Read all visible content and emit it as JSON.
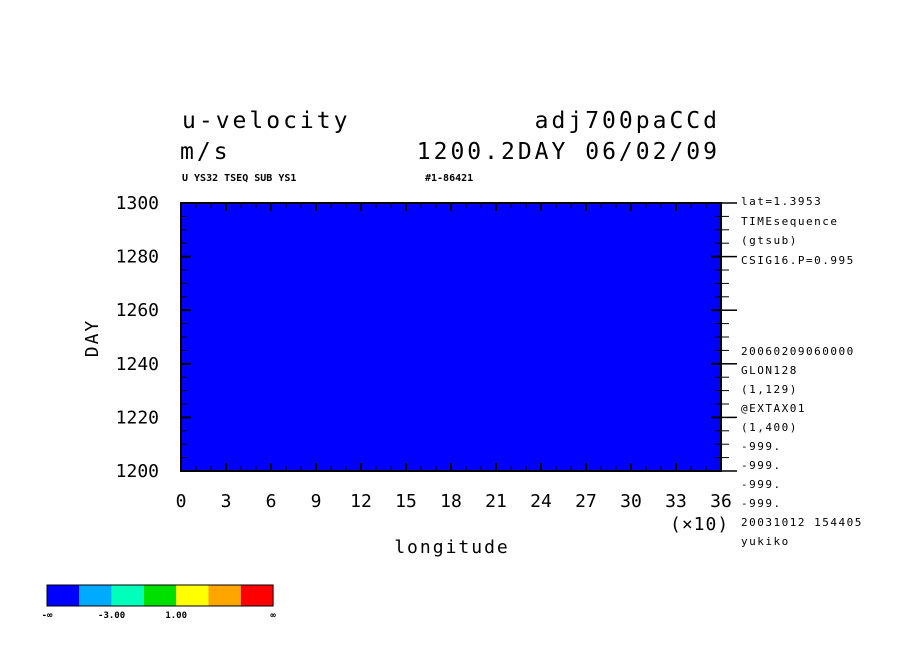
{
  "header": {
    "variable": "u-velocity",
    "units": "m/s",
    "experiment": "adj700paCCd",
    "time_stamp": "1200.2DAY 06/02/09",
    "subtitle_left": "U YS32 TSEQ SUB YS1",
    "subtitle_right": "#1-86421"
  },
  "side_notes": {
    "top": [
      "lat=1.3953",
      "TIMEsequence",
      "(gtsub)",
      "CSIG16.P=0.995"
    ],
    "bottom": [
      "20060209060000",
      "GLON128",
      "(1,129)",
      "@EXTAX01",
      "(1,400)",
      "-999.",
      "-999.",
      "-999.",
      "-999.",
      "20031012 154405",
      "yukiko"
    ]
  },
  "x_scale_note": "(×10)",
  "colorbar": {
    "colors": [
      "#0000ff",
      "#00aaff",
      "#00ffbb",
      "#00e000",
      "#ffff00",
      "#ffa500",
      "#ff0000"
    ],
    "labels": [
      "-∞",
      "-3.00",
      "1.00",
      "∞"
    ]
  },
  "chart_data": {
    "type": "heatmap",
    "xlabel": "longitude",
    "ylabel": "DAY",
    "xlim": [
      0,
      36
    ],
    "ylim": [
      1200,
      1300
    ],
    "x_ticks": [
      "0",
      "3",
      "6",
      "9",
      "12",
      "15",
      "18",
      "21",
      "24",
      "27",
      "30",
      "33",
      "36"
    ],
    "y_ticks": [
      "1200",
      "1220",
      "1240",
      "1260",
      "1280",
      "1300"
    ],
    "levels": [
      "< -3.00",
      "-3.00 to 1.00",
      "> 1.00"
    ],
    "dominant_colors": [
      "#ffff00",
      "#00e000",
      "#00ffbb"
    ]
  }
}
